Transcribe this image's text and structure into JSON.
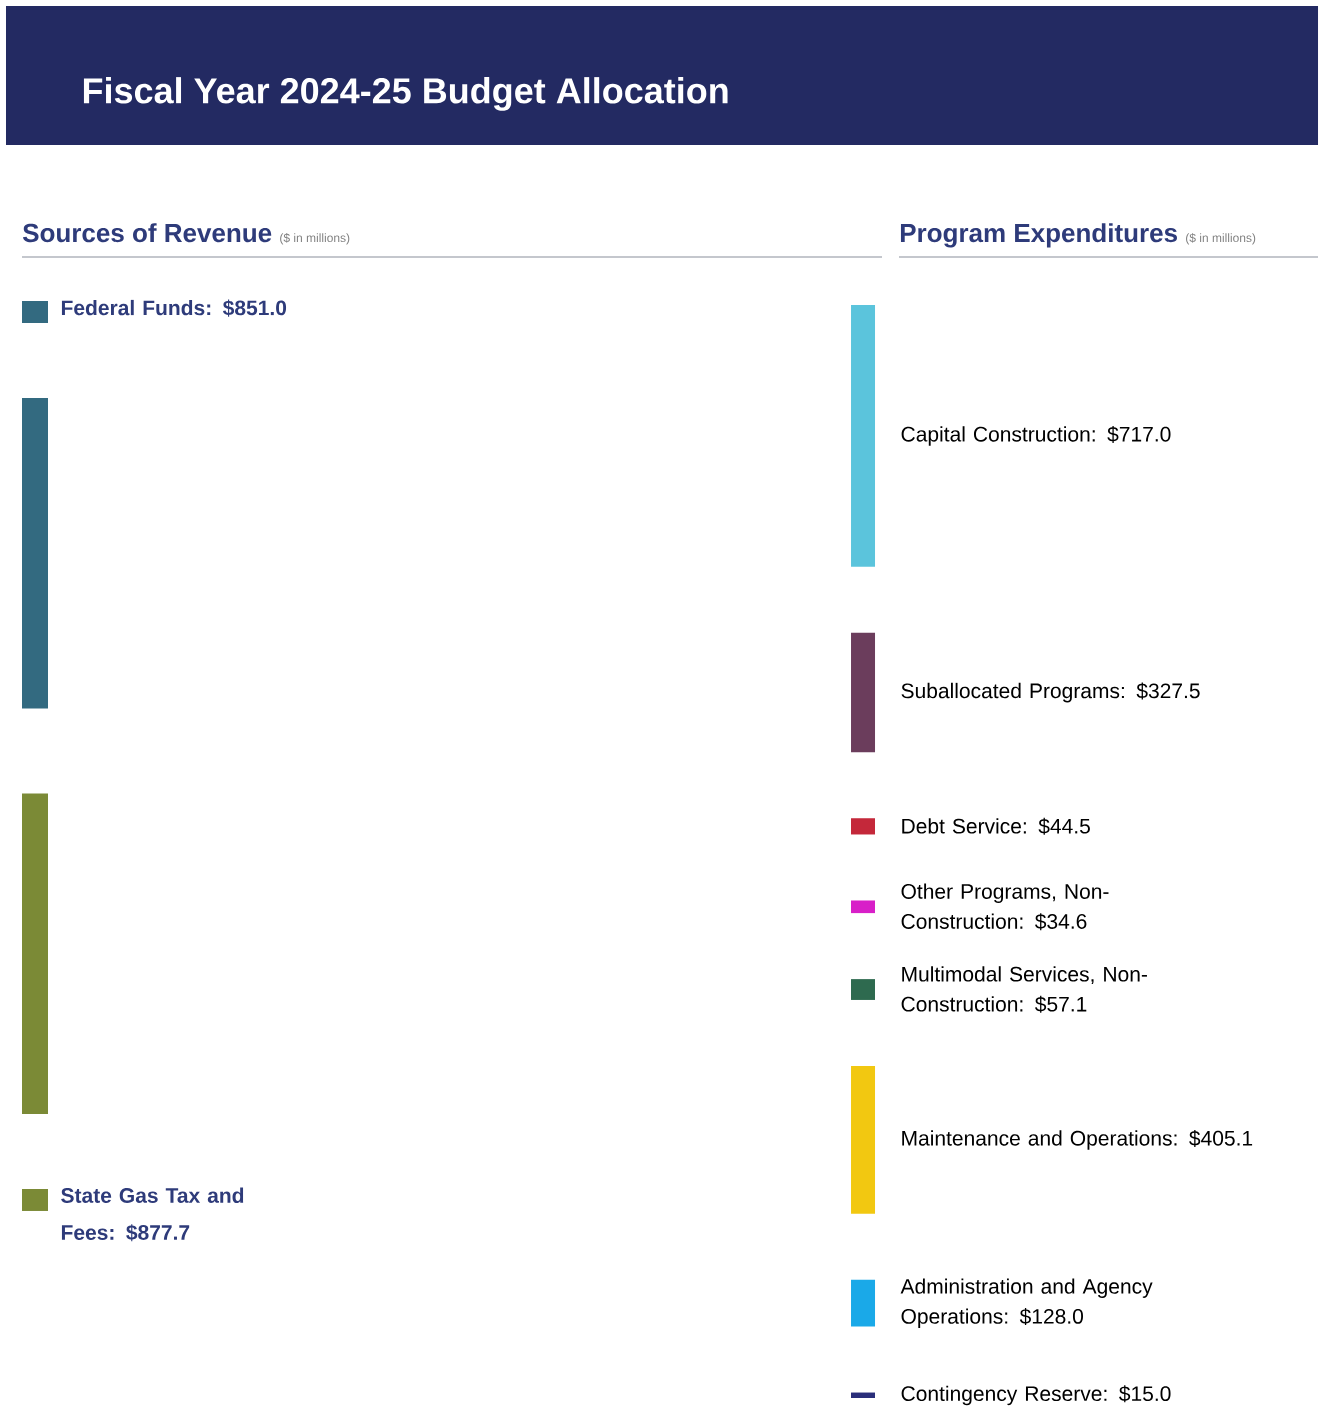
{
  "chart_data": [
    {
      "type": "other",
      "title": "Fiscal Year 2024-25 Budget Allocation"
    },
    {
      "type": "other",
      "title": "Sources of Revenue",
      "subtitle": "($ in millions)",
      "categories": [
        "Federal Funds",
        "State Gas Tax and Fees"
      ],
      "values": [
        851.0,
        877.7
      ],
      "value_labels": [
        ": $851.0",
        ": $877.7"
      ],
      "colors": [
        "#336a80",
        "#7b8a36"
      ]
    },
    {
      "type": "other",
      "title": "Program Expenditures",
      "subtitle": "($ in millions)",
      "categories": [
        "Capital Construction",
        "Suballocated Programs",
        "Debt Service",
        "Other Programs, Non-Construction",
        "Multimodal Services, Non-Construction",
        "Maintenance and Operations",
        "Administration and Agency Operations",
        "Contingency Reserve"
      ],
      "values": [
        717.0,
        327.5,
        44.5,
        34.6,
        57.1,
        405.1,
        128.0,
        15.0
      ],
      "value_labels": [
        ": $717.0",
        ": $327.5",
        ": $44.5",
        ": $34.6",
        ": $57.1",
        ": $405.1",
        ": $128.0",
        ": $15.0"
      ],
      "colors": [
        "#5bc4dc",
        "#6b3d5c",
        "#c4283a",
        "#d81fc8",
        "#2e6a4f",
        "#f2c811",
        "#1aa9e8",
        "#2a2e7a"
      ]
    }
  ]
}
